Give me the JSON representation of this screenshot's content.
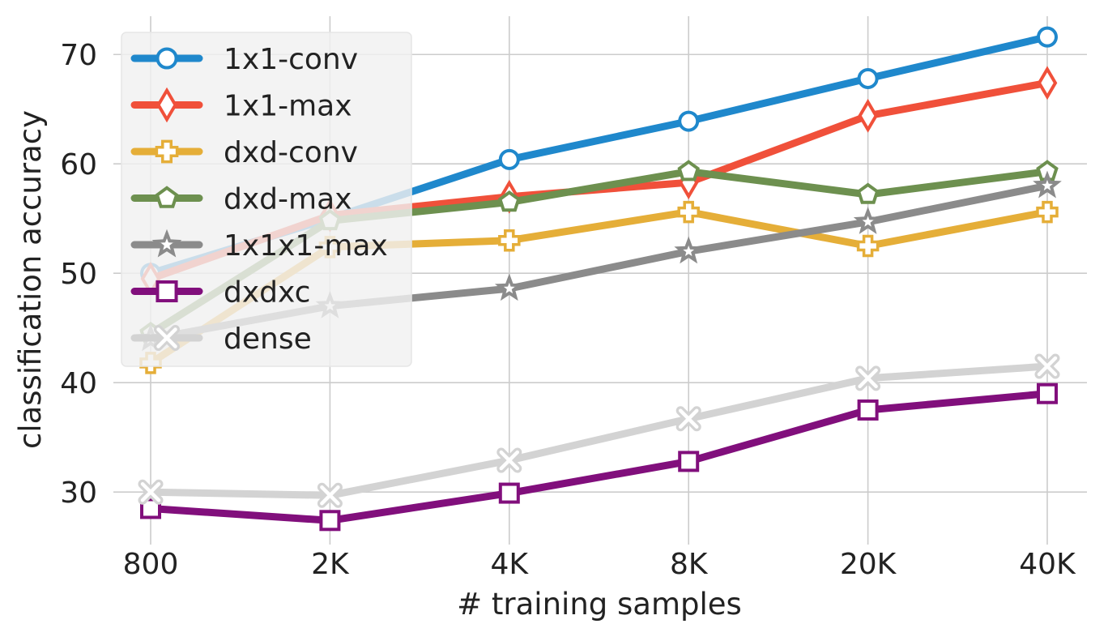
{
  "chart_data": {
    "type": "line",
    "xlabel": "# training samples",
    "ylabel": "classification accuracy",
    "categories": [
      "800",
      "2K",
      "4K",
      "8K",
      "20K",
      "40K"
    ],
    "ylim": [
      25.2,
      73.5
    ],
    "yticks": [
      30,
      40,
      50,
      60,
      70
    ],
    "grid": true,
    "legend_position": "top-left",
    "series": [
      {
        "name": "1x1-conv",
        "color": "#1f88cc",
        "marker": "circle",
        "values": [
          50.0,
          55.0,
          60.4,
          63.9,
          67.8,
          71.6
        ]
      },
      {
        "name": "1x1-max",
        "color": "#f0503a",
        "marker": "diamond",
        "values": [
          49.5,
          55.3,
          57.0,
          58.3,
          64.4,
          67.4
        ]
      },
      {
        "name": "dxd-conv",
        "color": "#e5ae38",
        "marker": "plus",
        "values": [
          41.8,
          52.4,
          53.0,
          55.6,
          52.5,
          55.6
        ]
      },
      {
        "name": "dxd-max",
        "color": "#6d904f",
        "marker": "pentagon",
        "values": [
          44.5,
          54.8,
          56.5,
          59.3,
          57.2,
          59.3
        ]
      },
      {
        "name": "1x1x1-max",
        "color": "#8b8b8b",
        "marker": "star",
        "values": [
          44.0,
          47.0,
          48.6,
          52.0,
          54.7,
          58.0
        ]
      },
      {
        "name": "dxdxc",
        "color": "#810f7c",
        "marker": "square",
        "values": [
          28.5,
          27.4,
          29.9,
          32.8,
          37.5,
          39.0
        ]
      },
      {
        "name": "dense",
        "color": "#d3d3d3",
        "marker": "x",
        "values": [
          30.0,
          29.7,
          32.9,
          36.7,
          40.4,
          41.5
        ]
      }
    ]
  }
}
